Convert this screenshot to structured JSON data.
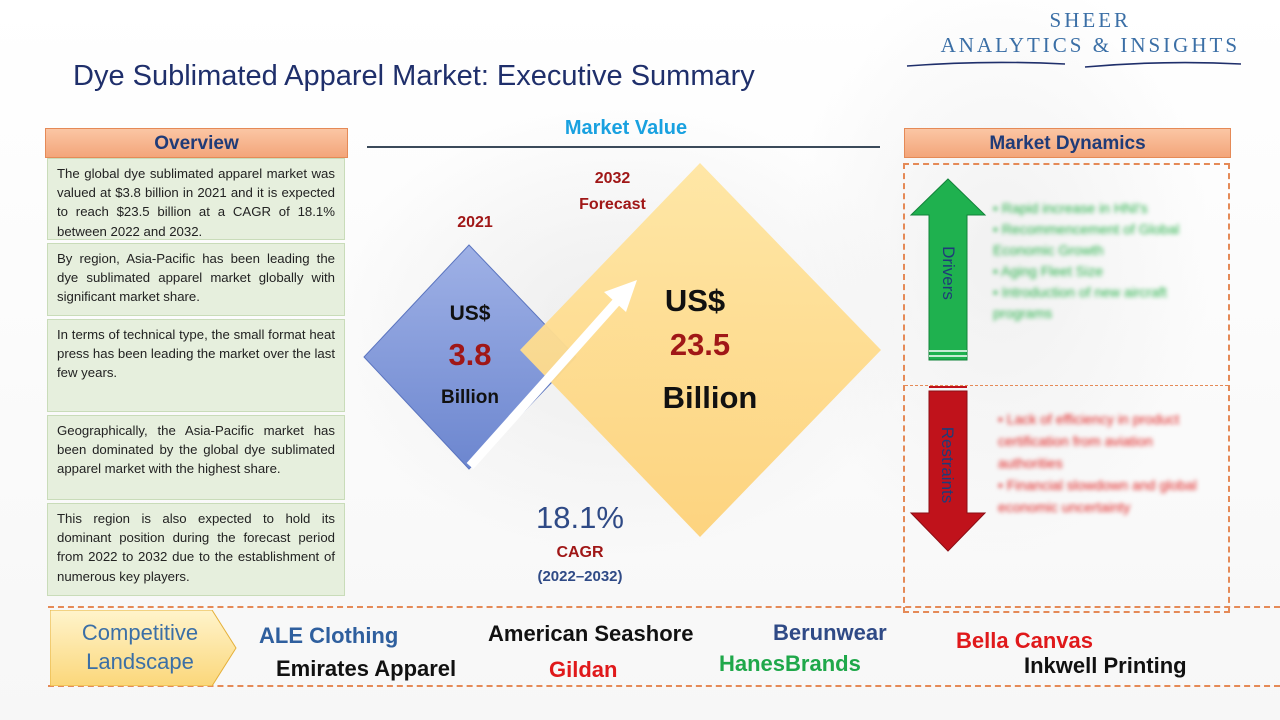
{
  "brand": {
    "line1": "SHEER",
    "line2": "ANALYTICS & INSIGHTS"
  },
  "title": "Dye Sublimated Apparel Market: Executive Summary",
  "overview": {
    "header": "Overview",
    "paragraphs": [
      "The global dye sublimated apparel market was valued at $3.8 billion in 2021 and it is expected to reach $23.5 billion at a CAGR of 18.1% between 2022 and 2032.",
      "By region, Asia-Pacific has been leading the dye sublimated apparel market globally with significant market share.",
      "In terms of technical type, the small format heat press has been leading the market over the last few years.",
      "Geographically, the Asia-Pacific market has been dominated by the global dye sublimated apparel market with the highest share.",
      "This region is also expected to hold its dominant position during the forecast period from 2022 to 2032 due to the establishment of numerous key players."
    ]
  },
  "market_value": {
    "header": "Market Value",
    "current": {
      "year": "2021",
      "currency": "US$",
      "value": "3.8",
      "unit": "Billion"
    },
    "forecast": {
      "year": "2032",
      "label": "Forecast",
      "currency": "US$",
      "value": "23.5",
      "unit": "Billion"
    },
    "cagr": {
      "value": "18.1%",
      "label": "CAGR",
      "period": "(2022–2032)"
    }
  },
  "market_dynamics": {
    "header": "Market Dynamics",
    "drivers": {
      "label": "Drivers",
      "items": [
        "Rapid increase in HNI's",
        "Recommencement of Global Economic Growth",
        "Aging Fleet Size",
        "Introduction of new aircraft programs"
      ]
    },
    "restraints": {
      "label": "Restraints",
      "items": [
        "Lack of efficiency in product certification from aviation authorities",
        "Financial slowdown and global economic uncertainty"
      ]
    }
  },
  "competitive_landscape": {
    "label_line1": "Competitive",
    "label_line2": "Landscape",
    "companies": [
      {
        "name": "ALE Clothing",
        "color": "#2f5f9e"
      },
      {
        "name": "American Seashore",
        "color": "#111111"
      },
      {
        "name": "Berunwear",
        "color": "#2f4a86"
      },
      {
        "name": "Bella Canvas",
        "color": "#e0191b"
      },
      {
        "name": "Emirates Apparel",
        "color": "#111111"
      },
      {
        "name": "Gildan",
        "color": "#e0191b"
      },
      {
        "name": "HanesBrands",
        "color": "#1fa84a"
      },
      {
        "name": "Inkwell Printing",
        "color": "#111111"
      }
    ]
  },
  "colors": {
    "accent_orange": "#f3a57a",
    "navy": "#1f2f6b",
    "dark_red": "#a01717",
    "sky_blue": "#19a1e0"
  }
}
